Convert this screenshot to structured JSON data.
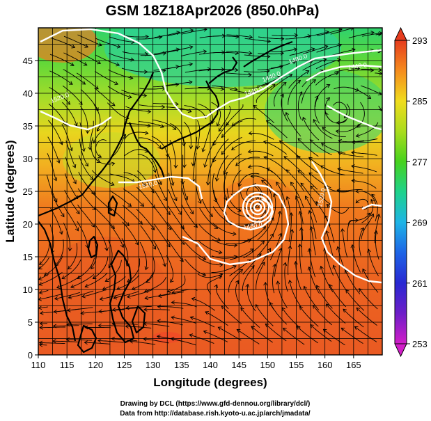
{
  "title": "GSM 18Z18Apr2026 (850.0hPa)",
  "xlabel": "Longitude (degrees)",
  "ylabel": "Latitude  (degrees)",
  "xticks": [
    "110",
    "115",
    "120",
    "125",
    "130",
    "135",
    "140",
    "145",
    "150",
    "155",
    "160",
    "165"
  ],
  "yticks": [
    "0",
    "5",
    "10",
    "15",
    "20",
    "25",
    "30",
    "35",
    "40",
    "45"
  ],
  "colorbar": {
    "ticks": [
      "293",
      "285",
      "277",
      "269",
      "261",
      "253"
    ],
    "range": [
      253,
      293
    ],
    "colors": [
      "#d21ec8",
      "#3c1ec8",
      "#1e64e6",
      "#1eb4e6",
      "#1ed28c",
      "#46d21e",
      "#aadc1e",
      "#f0dc1e",
      "#f5a01e",
      "#f0641e",
      "#e63c1e"
    ]
  },
  "contour_labels": [
    "1440.0",
    "1440.0",
    "1480.0",
    "1520.0",
    "1520.0",
    "1480.0",
    "1520.0",
    "1440.0"
  ],
  "credits": {
    "line1": "Drawing by DCL (https://www.gfd-dennou.org/library/dcl/)",
    "line2": "Data from http://database.rish.kyoto-u.ac.jp/arch/jmadata/"
  },
  "map": {
    "lon_range": [
      110,
      170
    ],
    "lat_range": [
      0,
      50
    ],
    "typhoon_center": {
      "lon": 147.3,
      "lat": 24.7
    },
    "high_center": {
      "lon": 162.0,
      "lat": 37.5
    }
  }
}
